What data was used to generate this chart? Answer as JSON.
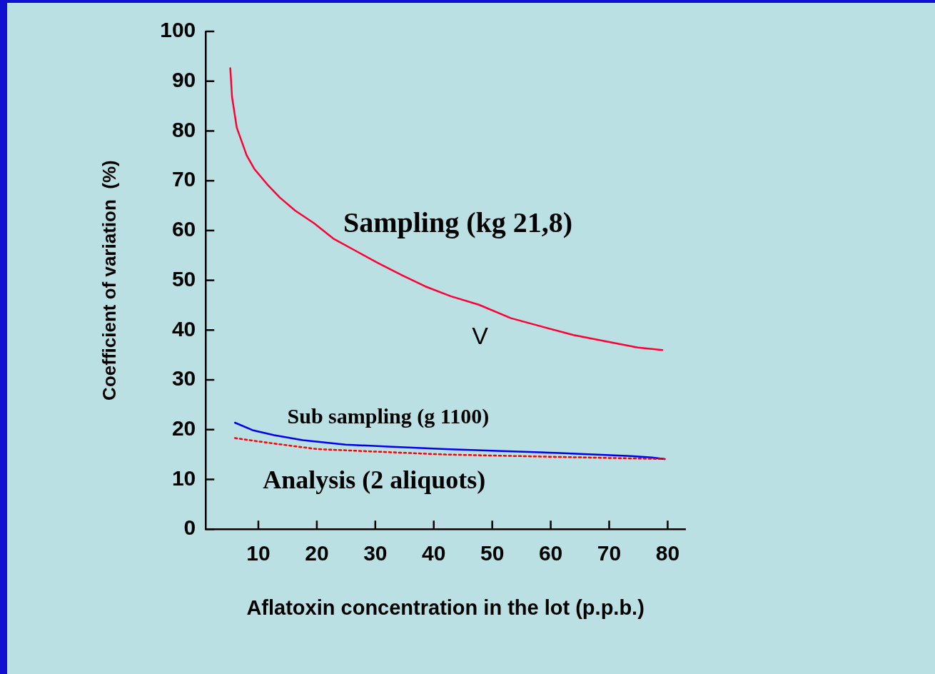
{
  "chart_data": {
    "type": "line",
    "xlabel": "Aflatoxin concentration in the lot (p.p.b.)",
    "ylabel": "Coefficient of variation  (%)",
    "xlim": [
      1,
      83
    ],
    "xticks": [
      10,
      20,
      30,
      40,
      50,
      60,
      70,
      80
    ],
    "ylim": [
      0,
      100
    ],
    "yticks": [
      0,
      10,
      20,
      30,
      40,
      50,
      60,
      70,
      80,
      90,
      100
    ],
    "grid": false,
    "legend": false,
    "marker": "none",
    "annotations": [
      "V"
    ],
    "series": [
      {
        "name": "Sampling (kg 21,8)",
        "color": "#ff0033",
        "line_style": "solid",
        "x": [
          5.2,
          5.5,
          6.3,
          8.0,
          9.3,
          11.5,
          13.7,
          16.3,
          19.5,
          22.8,
          27.3,
          30.4,
          34.6,
          38.5,
          42.9,
          47.7,
          53.2,
          58.8,
          63.9,
          70.0,
          74.9,
          79.1
        ],
        "values": [
          92.6,
          86.8,
          80.7,
          75.1,
          72.4,
          69.3,
          66.6,
          64.0,
          61.5,
          58.4,
          55.5,
          53.5,
          51.0,
          48.8,
          46.8,
          45.1,
          42.4,
          40.6,
          39.0,
          37.6,
          36.5,
          36.0
        ]
      },
      {
        "name": "Sub sampling (g 1100)",
        "color": "#0000ee",
        "line_style": "solid",
        "x": [
          6.0,
          9.0,
          12.7,
          17.6,
          24.9,
          32.2,
          42.0,
          51.7,
          61.5,
          73.7,
          77.3,
          79.5
        ],
        "values": [
          21.4,
          19.9,
          18.9,
          17.9,
          17.0,
          16.6,
          16.1,
          15.7,
          15.3,
          14.7,
          14.4,
          14.1
        ]
      },
      {
        "name": "Analysis (2 aliquots)",
        "color": "#ff0000",
        "line_style": "dotted",
        "x": [
          6.0,
          12.7,
          20.0,
          29.8,
          42.0,
          54.1,
          66.3,
          79.5
        ],
        "values": [
          18.3,
          17.2,
          16.1,
          15.6,
          15.0,
          14.7,
          14.4,
          14.1
        ]
      }
    ]
  }
}
